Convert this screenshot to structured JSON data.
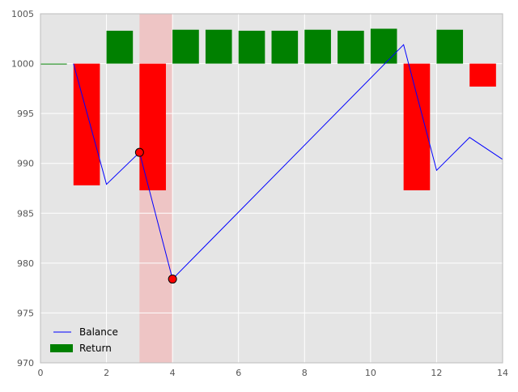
{
  "chart_data": {
    "type": "bar",
    "title": "",
    "xlabel": "",
    "ylabel": "",
    "xlim": [
      0,
      14
    ],
    "ylim": [
      970,
      1005
    ],
    "xticks": [
      0,
      2,
      4,
      6,
      8,
      10,
      12,
      14
    ],
    "yticks": [
      970,
      975,
      980,
      985,
      990,
      995,
      1000,
      1005
    ],
    "grid": true,
    "background_color": "#e5e5e5",
    "legend": {
      "placement": "lower-left",
      "items": [
        {
          "label": "Balance",
          "kind": "line",
          "color": "#0000ff"
        },
        {
          "label": "Return",
          "kind": "patch",
          "color": "#008000"
        }
      ]
    },
    "baseline": 1000,
    "bar_width": 0.8,
    "return_bars": [
      {
        "x": 0,
        "value": 1000.0
      },
      {
        "x": 1,
        "value": 987.8
      },
      {
        "x": 2,
        "value": 1003.3
      },
      {
        "x": 3,
        "value": 987.3
      },
      {
        "x": 4,
        "value": 1003.4
      },
      {
        "x": 5,
        "value": 1003.4
      },
      {
        "x": 6,
        "value": 1003.3
      },
      {
        "x": 7,
        "value": 1003.3
      },
      {
        "x": 8,
        "value": 1003.4
      },
      {
        "x": 9,
        "value": 1003.3
      },
      {
        "x": 10,
        "value": 1003.5
      },
      {
        "x": 11,
        "value": 987.3
      },
      {
        "x": 12,
        "value": 1003.4
      },
      {
        "x": 13,
        "value": 997.7
      }
    ],
    "colors": {
      "positive": "#008000",
      "negative": "#ff0000",
      "balance_line": "#0000ff",
      "marker_fill": "#ff0000",
      "highlight": "#f2b8b8"
    },
    "balance": {
      "name": "Balance",
      "x": [
        1,
        2,
        3,
        4,
        11,
        12,
        13,
        14
      ],
      "y": [
        1000,
        987.9,
        991.1,
        978.4,
        1001.9,
        989.3,
        992.6,
        990.4
      ]
    },
    "markers": [
      {
        "x": 3,
        "y": 991.1
      },
      {
        "x": 4,
        "y": 978.4
      }
    ],
    "highlight_span": {
      "x_start": 3,
      "x_end": 4
    }
  }
}
